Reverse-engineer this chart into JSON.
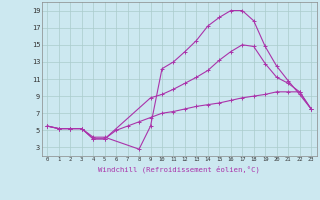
{
  "xlabel": "Windchill (Refroidissement éolien,°C)",
  "background_color": "#cce8f0",
  "grid_color": "#aacccc",
  "line_color": "#aa33aa",
  "xlim": [
    -0.5,
    23.5
  ],
  "ylim": [
    2.0,
    20.0
  ],
  "xticks": [
    0,
    1,
    2,
    3,
    4,
    5,
    6,
    7,
    8,
    9,
    10,
    11,
    12,
    13,
    14,
    15,
    16,
    17,
    18,
    19,
    20,
    21,
    22,
    23
  ],
  "yticks": [
    3,
    5,
    7,
    9,
    11,
    13,
    15,
    17,
    19
  ],
  "series": [
    {
      "x": [
        0,
        1,
        2,
        3,
        4,
        5,
        8,
        9,
        10,
        11,
        12,
        13,
        14,
        15,
        16,
        17,
        18,
        19,
        20,
        21,
        22,
        23
      ],
      "y": [
        5.5,
        5.2,
        5.2,
        5.2,
        4.2,
        4.2,
        2.8,
        5.5,
        12.2,
        13.0,
        14.2,
        15.5,
        17.2,
        18.2,
        19.0,
        19.0,
        17.8,
        14.8,
        12.5,
        10.8,
        9.2,
        7.5
      ]
    },
    {
      "x": [
        0,
        1,
        2,
        3,
        4,
        5,
        9,
        10,
        11,
        12,
        13,
        14,
        15,
        16,
        17,
        18,
        19,
        20,
        21,
        22,
        23
      ],
      "y": [
        5.5,
        5.2,
        5.2,
        5.2,
        4.0,
        4.0,
        8.8,
        9.2,
        9.8,
        10.5,
        11.2,
        12.0,
        13.2,
        14.2,
        15.0,
        14.8,
        12.8,
        11.2,
        10.5,
        9.5,
        7.5
      ]
    },
    {
      "x": [
        0,
        1,
        2,
        3,
        4,
        5,
        6,
        7,
        8,
        9,
        10,
        11,
        12,
        13,
        14,
        15,
        16,
        17,
        18,
        19,
        20,
        21,
        22,
        23
      ],
      "y": [
        5.5,
        5.2,
        5.2,
        5.2,
        4.0,
        4.0,
        5.0,
        5.5,
        6.0,
        6.5,
        7.0,
        7.2,
        7.5,
        7.8,
        8.0,
        8.2,
        8.5,
        8.8,
        9.0,
        9.2,
        9.5,
        9.5,
        9.5,
        7.5
      ]
    }
  ]
}
